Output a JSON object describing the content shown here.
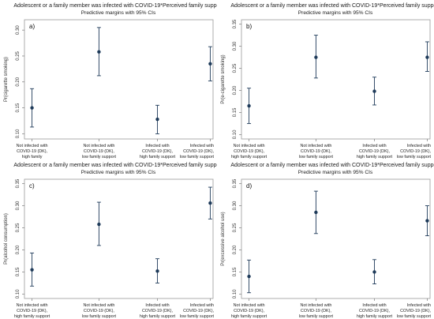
{
  "chart_data": [
    {
      "type": "scatter",
      "panel_label": "a)",
      "title": "Adolescent or a family member was infected with COVID-19*Perceived family support",
      "subtitle": "Predictive margins with 95% CIs",
      "ylabel": "Pr(cigarette smoking)",
      "ylim": [
        0.09,
        0.32
      ],
      "yticks": [
        "0.10",
        "0.15",
        "0.20",
        "0.25",
        "0.30"
      ],
      "yticks_values": [
        0.1,
        0.15,
        0.2,
        0.25,
        0.3
      ],
      "categories": [
        [
          "Not infected with",
          "COVID-19 (DK),",
          "high family"
        ],
        [
          "Not infected with",
          "COVID-19 (DK),",
          "low family support"
        ],
        [
          "Infected with",
          "COVID-19 (DK),",
          "high family support"
        ],
        [
          "Infected with",
          "COVID-19 (DK),",
          "low family support"
        ]
      ],
      "estimates": [
        0.15,
        0.258,
        0.128,
        0.235
      ],
      "ci_low": [
        0.113,
        0.212,
        0.1,
        0.202
      ],
      "ci_high": [
        0.187,
        0.305,
        0.155,
        0.268
      ]
    },
    {
      "type": "scatter",
      "panel_label": "b)",
      "title": "Adolescent or a family member was infected with COVID-19*Perceived family support",
      "subtitle": "Predictive margins with 95% CIs",
      "ylabel": "Pr(e-cigarette smoking)",
      "ylim": [
        0.09,
        0.36
      ],
      "yticks": [
        "0.10",
        "0.15",
        "0.20",
        "0.25",
        "0.30",
        "0.35"
      ],
      "yticks_values": [
        0.1,
        0.15,
        0.2,
        0.25,
        0.3,
        0.35
      ],
      "categories": [
        [
          "Not infected with",
          "COVID-19 (DK),",
          "high family support"
        ],
        [
          "Not infected with",
          "COVID-19 (DK),",
          "low family support"
        ],
        [
          "Infected with",
          "COVID-19 (DK),",
          "high family support"
        ],
        [
          "Infected with",
          "COVID-19 (DK),",
          "low family support"
        ]
      ],
      "estimates": [
        0.165,
        0.275,
        0.198,
        0.275
      ],
      "ci_low": [
        0.125,
        0.228,
        0.167,
        0.243
      ],
      "ci_high": [
        0.205,
        0.325,
        0.23,
        0.31
      ]
    },
    {
      "type": "scatter",
      "panel_label": "c)",
      "title": "Adolescent or a family member was infected with COVID-19*Perceived family support",
      "subtitle": "Predictive margins with 95% CIs",
      "ylabel": "Pr(alcohol consumption)",
      "ylim": [
        0.09,
        0.36
      ],
      "yticks": [
        "0.10",
        "0.15",
        "0.20",
        "0.25",
        "0.30",
        "0.35"
      ],
      "yticks_values": [
        0.1,
        0.15,
        0.2,
        0.25,
        0.3,
        0.35
      ],
      "categories": [
        [
          "Not infected with",
          "COVID-19 (DK),",
          "high family support"
        ],
        [
          "Not infected with",
          "COVID-19 (DK),",
          "low family support"
        ],
        [
          "Infected with",
          "COVID-19 (DK),",
          "high family support"
        ],
        [
          "Infected with",
          "COVID-19 (DK),",
          "low family support"
        ]
      ],
      "estimates": [
        0.155,
        0.258,
        0.152,
        0.306
      ],
      "ci_low": [
        0.118,
        0.21,
        0.125,
        0.27
      ],
      "ci_high": [
        0.193,
        0.308,
        0.18,
        0.342
      ]
    },
    {
      "type": "scatter",
      "panel_label": "d)",
      "title": "Adolescent or a family member was infected with COVID-19*Perceived family support",
      "subtitle": "Predictive margins with 95% CIs",
      "ylabel": "Pr(excessive alcohol use)",
      "ylim": [
        0.09,
        0.36
      ],
      "yticks": [
        "0.10",
        "0.15",
        "0.20",
        "0.25",
        "0.30",
        "0.35"
      ],
      "yticks_values": [
        0.1,
        0.15,
        0.2,
        0.25,
        0.3,
        0.35
      ],
      "categories": [
        [
          "Not infected with",
          "COVID-19 (DK),",
          "high family support"
        ],
        [
          "Not infected with",
          "COVID-19 (DK),",
          "low family support"
        ],
        [
          "Infected with",
          "COVID-19 (DK),",
          "high family support"
        ],
        [
          "Infected with",
          "COVID-19 (DK),",
          "low family support"
        ]
      ],
      "estimates": [
        0.14,
        0.285,
        0.15,
        0.266
      ],
      "ci_low": [
        0.103,
        0.237,
        0.123,
        0.232
      ],
      "ci_high": [
        0.177,
        0.333,
        0.178,
        0.3
      ]
    }
  ],
  "colors": {
    "marker": "#1f3b5a",
    "frame": "#9a9a9a",
    "text": "#1a1a1a",
    "background": "#ffffff"
  }
}
